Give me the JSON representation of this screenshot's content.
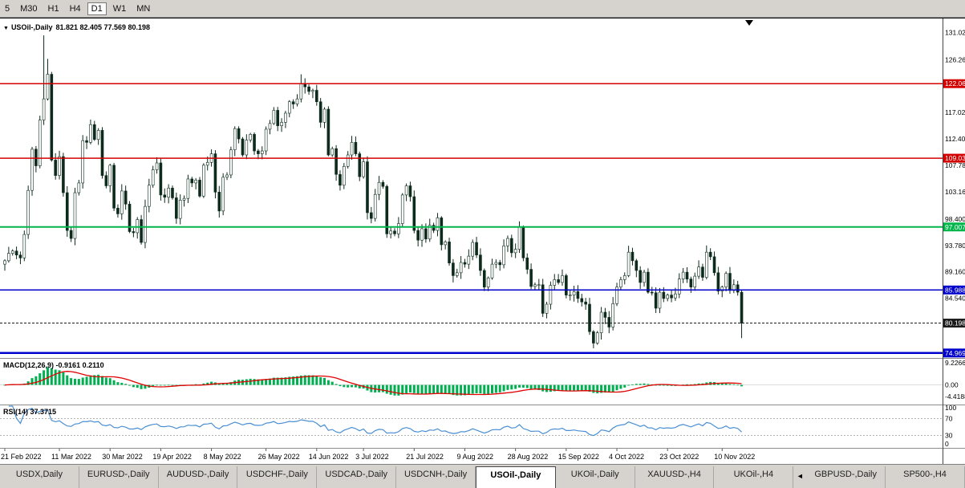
{
  "icons": {
    "dropdown": "▼",
    "tab_scroll_left": "◄",
    "shift_marker": "▼"
  },
  "toolbar": {
    "timeframes": [
      {
        "label": "5"
      },
      {
        "label": "M30"
      },
      {
        "label": "H1"
      },
      {
        "label": "H4"
      },
      {
        "label": "D1",
        "active": true
      },
      {
        "label": "W1"
      },
      {
        "label": "MN"
      }
    ]
  },
  "chart_header": {
    "symbol": "USOil-,Daily",
    "ohlc": "81.821 82.405 77.569 80.198"
  },
  "macd_panel": {
    "title": "MACD(12,26,9)",
    "values": "-0.9161 0.2110"
  },
  "rsi_panel": {
    "title": "RSI(14)",
    "values": "37.3715"
  },
  "chart_data": {
    "type": "candlestick",
    "title": "USOil-,Daily",
    "current_ohlc": {
      "open": 81.821,
      "high": 82.405,
      "low": 77.569,
      "close": 80.198
    },
    "price_range_displayed": [
      74.1,
      133.6
    ],
    "macd_display_range": [
      -7.5,
      9.7
    ],
    "closes": [
      91.1,
      92.4,
      92.8,
      92.1,
      91.6,
      95.7,
      103.4,
      110.6,
      107.7,
      115.7,
      119.4,
      123.7,
      108.7,
      106.0,
      109.3,
      103.0,
      96.4,
      95.0,
      103.0,
      104.7,
      112.1,
      111.8,
      114.9,
      112.3,
      113.9,
      106.0,
      104.2,
      107.8,
      100.3,
      99.3,
      103.3,
      101.0,
      96.2,
      96.0,
      98.3,
      94.3,
      100.6,
      104.3,
      107.0,
      108.2,
      102.6,
      102.2,
      103.8,
      102.1,
      98.5,
      101.7,
      102.0,
      105.4,
      104.7,
      105.2,
      102.4,
      107.8,
      108.3,
      109.8,
      103.1,
      99.8,
      105.7,
      106.1,
      110.5,
      114.2,
      112.4,
      109.6,
      112.2,
      113.2,
      110.3,
      109.8,
      110.3,
      114.1,
      115.1,
      117.4,
      114.7,
      115.3,
      116.9,
      118.9,
      118.5,
      119.4,
      122.1,
      121.5,
      120.7,
      120.9,
      118.9,
      115.3,
      117.6,
      109.6,
      110.7,
      106.2,
      104.3,
      107.6,
      109.6,
      111.8,
      109.8,
      105.8,
      108.4,
      99.5,
      98.5,
      102.7,
      104.8,
      104.1,
      95.8,
      96.3,
      95.8,
      97.6,
      102.6,
      104.2,
      102.3,
      96.4,
      94.7,
      96.7,
      94.9,
      97.3,
      96.4,
      98.6,
      93.9,
      94.4,
      90.7,
      88.5,
      89.0,
      90.8,
      90.5,
      91.9,
      94.3,
      92.1,
      89.4,
      86.5,
      88.1,
      90.5,
      90.8,
      90.4,
      93.7,
      95.0,
      92.5,
      93.1,
      97.0,
      91.6,
      89.6,
      86.6,
      86.9,
      86.9,
      81.9,
      83.5,
      86.8,
      87.8,
      87.3,
      88.5,
      85.1,
      85.1,
      85.7,
      84.5,
      83.9,
      83.5,
      78.7,
      76.7,
      78.5,
      82.1,
      81.2,
      79.5,
      83.6,
      86.5,
      87.8,
      88.5,
      92.6,
      91.1,
      89.4,
      87.3,
      89.1,
      85.6,
      85.5,
      82.8,
      85.6,
      84.5,
      85.1,
      84.6,
      85.3,
      87.9,
      89.1,
      87.9,
      86.5,
      88.4,
      90.0,
      88.2,
      92.6,
      91.8,
      89.0,
      85.8,
      86.5,
      88.9,
      85.9,
      86.9,
      85.6,
      80.2
    ],
    "wick_overrides": {
      "10": {
        "h": 130.5
      },
      "11": {
        "h": 126.4
      },
      "76": {
        "h": 123.7
      },
      "151": {
        "l": 75.8
      },
      "189": {
        "l": 77.569
      }
    },
    "price_ticks": [
      "131.020",
      "126.260",
      "117.020",
      "112.400",
      "107.780",
      "103.160",
      "98.400",
      "93.780",
      "89.160",
      "84.540"
    ],
    "hlines": [
      {
        "value": 122.06,
        "label": "122.060",
        "color": "#d40000",
        "width": 1.5
      },
      {
        "value": 109.03,
        "label": "109.030",
        "color": "#d40000",
        "width": 1.5
      },
      {
        "value": 97.007,
        "label": "97.007",
        "color": "#00b64b",
        "width": 2
      },
      {
        "value": 85.988,
        "label": "85.988",
        "color": "#0000cc",
        "width": 1.5
      },
      {
        "value": 80.198,
        "label": "80.198",
        "color": "#1a1a1a",
        "width": 1,
        "dashed": true
      },
      {
        "value": 74.969,
        "label": "74.969",
        "color": "#0000cc",
        "width": 2.5
      }
    ],
    "date_ticks": [
      {
        "i": 0,
        "label": "21 Feb 2022"
      },
      {
        "i": 14,
        "label": "11 Mar 2022"
      },
      {
        "i": 27,
        "label": "30 Mar 2022"
      },
      {
        "i": 40,
        "label": "19 Apr 2022"
      },
      {
        "i": 53,
        "label": "8 May 2022"
      },
      {
        "i": 67,
        "label": "26 May 2022"
      },
      {
        "i": 80,
        "label": "14 Jun 2022"
      },
      {
        "i": 92,
        "label": "3 Jul 2022"
      },
      {
        "i": 105,
        "label": "21 Jul 2022"
      },
      {
        "i": 118,
        "label": "9 Aug 2022"
      },
      {
        "i": 131,
        "label": "28 Aug 2022"
      },
      {
        "i": 144,
        "label": "15 Sep 2022"
      },
      {
        "i": 157,
        "label": "4 Oct 2022"
      },
      {
        "i": 170,
        "label": "23 Oct 2022"
      },
      {
        "i": 184,
        "label": "10 Nov 2022"
      }
    ],
    "indicators": [
      {
        "name": "MACD",
        "params": "12,26,9",
        "values": [
          "-0.9161",
          "0.2110"
        ],
        "axis_labels": [
          "9.2266",
          "0.00",
          "-4.4188"
        ]
      },
      {
        "name": "RSI",
        "params": "14",
        "values": [
          "37.3715"
        ],
        "axis_labels": [
          "100",
          "70",
          "30",
          "0"
        ],
        "levels": [
          70,
          30
        ]
      }
    ]
  },
  "colors": {
    "bull": "#ffffff",
    "bear": "#0d2b1d",
    "wick": "#0d2b1d",
    "macd_hist": "#00b050",
    "macd_signal": "#e00000",
    "rsi_line": "#4a8fd4",
    "axis_text": "#000000",
    "separator": "#8c8c8c"
  },
  "tabs": [
    {
      "label": "USDX,Daily"
    },
    {
      "label": "EURUSD-,Daily"
    },
    {
      "label": "AUDUSD-,Daily"
    },
    {
      "label": "USDCHF-,Daily"
    },
    {
      "label": "USDCAD-,Daily"
    },
    {
      "label": "USDCNH-,Daily"
    },
    {
      "label": "USOil-,Daily",
      "active": true
    },
    {
      "label": "UKOil-,Daily"
    },
    {
      "label": "XAUUSD-,H4"
    },
    {
      "label": "UKOil-,H4"
    },
    {
      "type": "scroll-arrow"
    },
    {
      "label": "GBPUSD-,Daily"
    },
    {
      "label": "SP500-,H4"
    }
  ]
}
